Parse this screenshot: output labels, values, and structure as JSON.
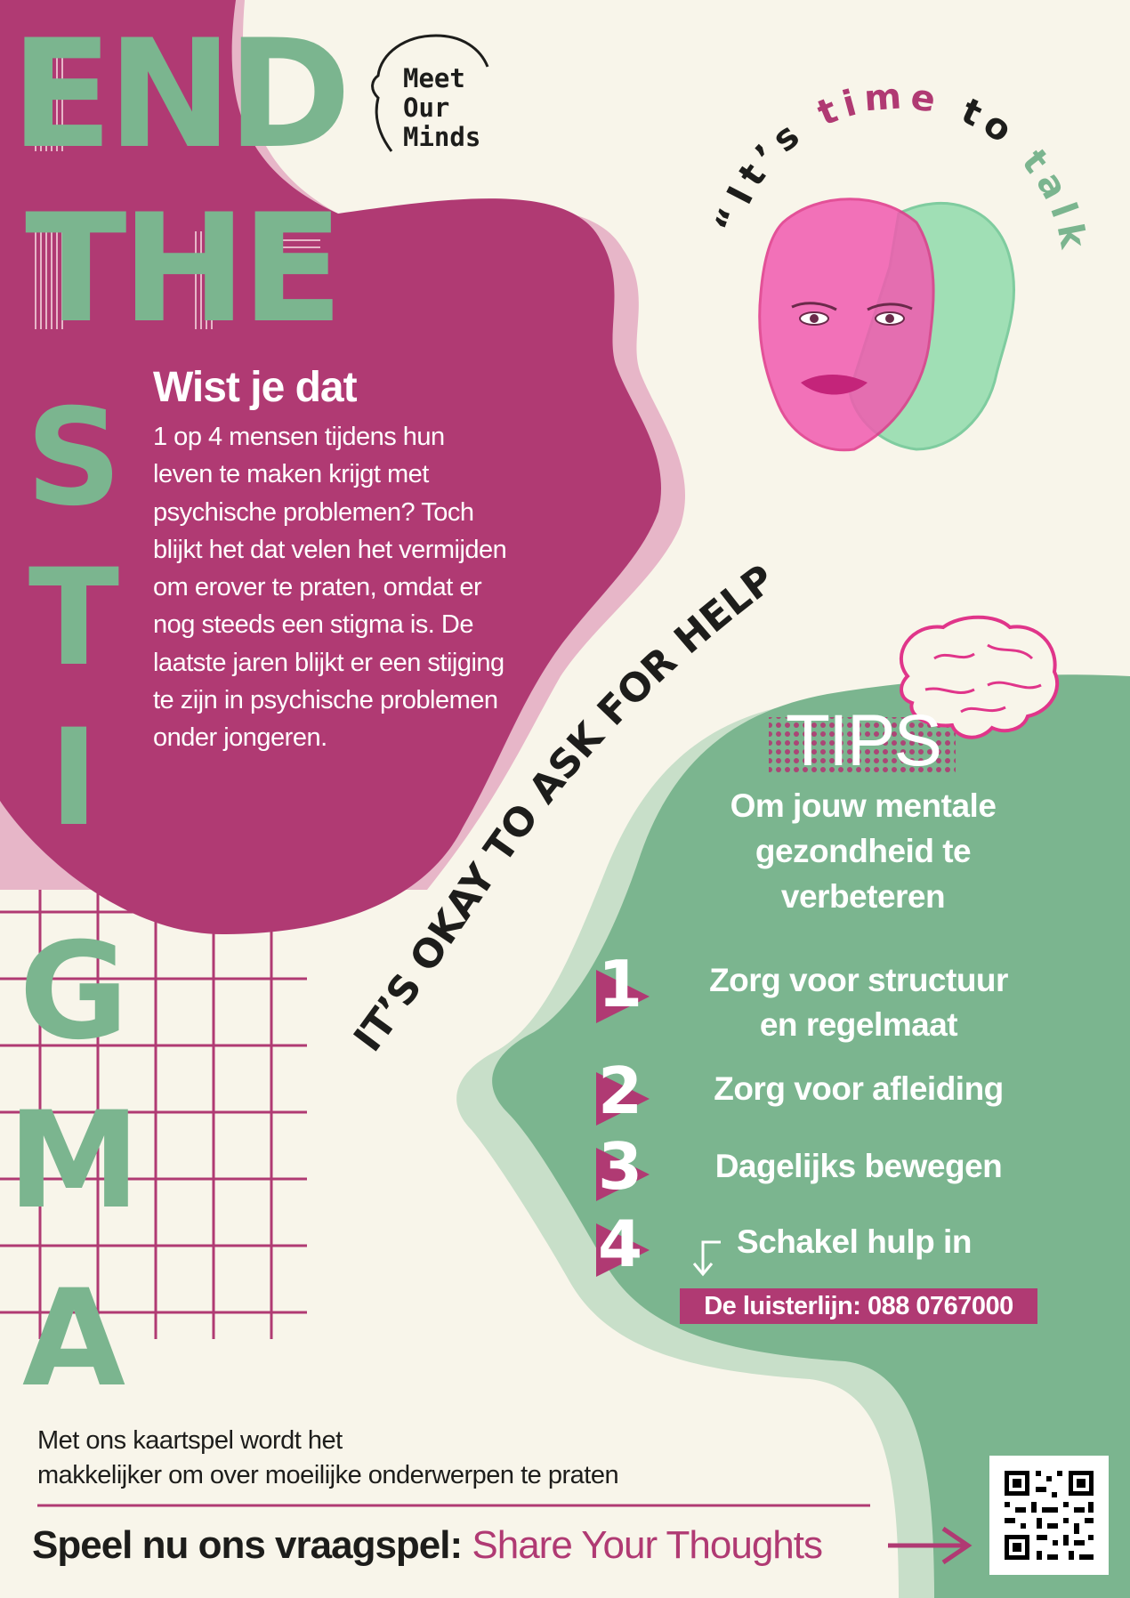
{
  "colors": {
    "magenta": "#b03a73",
    "light_pink": "#e7b6c8",
    "green": "#7bb58f",
    "light_green": "#c8dfc9",
    "cream": "#f8f5ea",
    "dark": "#1d1d1b"
  },
  "header": {
    "line1": "END",
    "line2": "THE",
    "vertical_letters": [
      "S",
      "T",
      "I",
      "G",
      "M",
      "A"
    ]
  },
  "logo": {
    "icon": "head-profile-icon",
    "line1": "Meet",
    "line2": "Our",
    "line3": "Minds"
  },
  "slogan": {
    "part1": "“It’s ",
    "part2": "time",
    "part3": " to ",
    "part4": "talk",
    "part5": "”"
  },
  "faces": {
    "icon": "two-faces-illustration"
  },
  "intro": {
    "title": "Wist je dat",
    "body": "1 op 4 mensen tijdens hun leven te maken krijgt met psychische problemen? Toch blijkt het dat velen het vermijden om erover te praten, omdat er nog steeds een stigma is. De laatste jaren blijkt er een stijging te zijn in psychische problemen onder jongeren."
  },
  "help_curve": "IT’S OKAY TO ASK FOR HELP",
  "tips": {
    "brain_icon": "brain-icon",
    "title": "TIPS",
    "subtitle_line1": "Om jouw mentale",
    "subtitle_line2": "gezondheid te",
    "subtitle_line3": "verbeteren",
    "items": [
      {
        "number": "1",
        "line1": "Zorg voor structuur",
        "line2": "en regelmaat"
      },
      {
        "number": "2",
        "line1": "Zorg voor afleiding"
      },
      {
        "number": "3",
        "line1": "Dagelijks bewegen"
      },
      {
        "number": "4",
        "line1": "Schakel hulp in"
      }
    ],
    "hotline": "De luisterlijn: 088 0767000"
  },
  "bottom": {
    "line1": "Met ons kaartspel wordt het",
    "line2": "makkelijker om over moeilijke onderwerpen te praten",
    "play_prefix": "Speel nu ons vraagspel: ",
    "play_link": "Share Your Thoughts",
    "arrow_icon": "arrow-right-icon",
    "qr_icon": "qr-code-icon"
  }
}
